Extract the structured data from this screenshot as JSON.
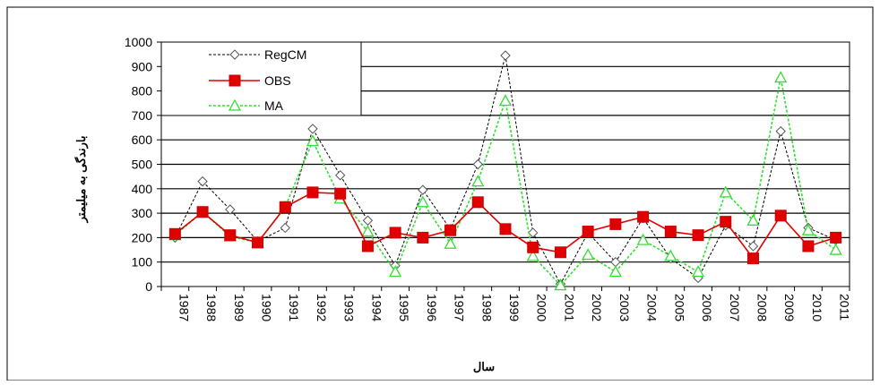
{
  "chart_data": {
    "type": "line",
    "title": "",
    "xlabel": "سال",
    "ylabel": "بارندگی به میلیمتر",
    "ylim": [
      0,
      1000
    ],
    "yticks": [
      0,
      100,
      200,
      300,
      400,
      500,
      600,
      700,
      800,
      900,
      1000
    ],
    "grid": "horizontal",
    "legend_position": "top-left",
    "categories": [
      "1987",
      "1988",
      "1989",
      "1990",
      "1991",
      "1992",
      "1993",
      "1994",
      "1995",
      "1996",
      "1997",
      "1998",
      "1999",
      "2000",
      "2001",
      "2002",
      "2003",
      "2004",
      "2005",
      "2006",
      "2007",
      "2008",
      "2009",
      "2010",
      "2011"
    ],
    "series": [
      {
        "name": "RegCM",
        "color": "#000000",
        "marker": "diamond-open",
        "dashed": true,
        "values": [
          200,
          430,
          315,
          185,
          240,
          645,
          455,
          270,
          85,
          395,
          235,
          500,
          945,
          220,
          10,
          220,
          100,
          280,
          115,
          35,
          250,
          165,
          635,
          240,
          190
        ]
      },
      {
        "name": "OBS",
        "color": "#e00000",
        "marker": "square-filled",
        "dashed": false,
        "values": [
          215,
          305,
          210,
          180,
          325,
          385,
          380,
          165,
          220,
          200,
          230,
          345,
          235,
          160,
          140,
          225,
          255,
          285,
          225,
          210,
          265,
          115,
          290,
          165,
          200
        ]
      },
      {
        "name": "MA",
        "color": "#33dd33",
        "marker": "triangle-open",
        "dashed": true,
        "values": [
          210,
          305,
          205,
          180,
          325,
          595,
          360,
          225,
          60,
          345,
          175,
          430,
          760,
          125,
          5,
          130,
          60,
          190,
          125,
          60,
          385,
          270,
          855,
          230,
          150
        ]
      }
    ]
  }
}
